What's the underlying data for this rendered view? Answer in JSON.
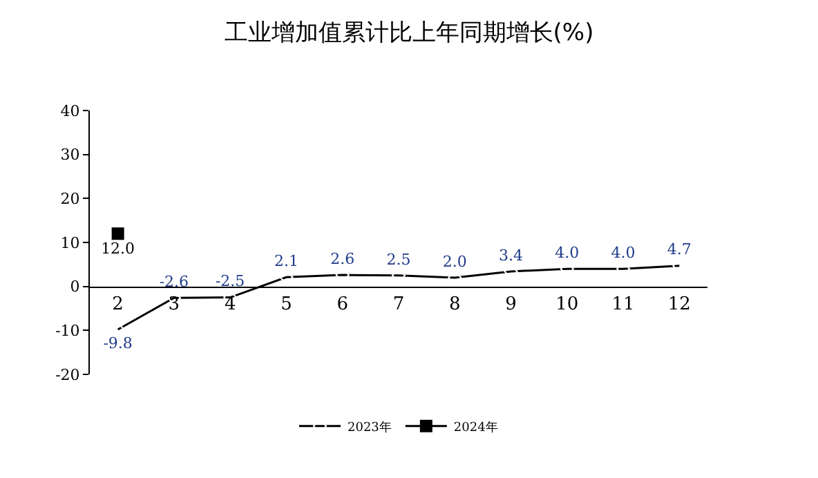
{
  "chart_data": {
    "type": "line",
    "title": "工业增加值累计比上年同期增长(%)",
    "categories": [
      "2",
      "3",
      "4",
      "5",
      "6",
      "7",
      "8",
      "9",
      "10",
      "11",
      "12"
    ],
    "series": [
      {
        "name": "2023年",
        "color": "#000000",
        "marker": "diamond",
        "values": [
          -9.8,
          -2.6,
          -2.5,
          2.1,
          2.6,
          2.5,
          2.0,
          3.4,
          4.0,
          4.0,
          4.7
        ],
        "value_labels": [
          "-9.8",
          "-2.6",
          "-2.5",
          "2.1",
          "2.6",
          "2.5",
          "2.0",
          "3.4",
          "4.0",
          "4.0",
          "4.7"
        ]
      },
      {
        "name": "2024年",
        "color": "#000000",
        "marker": "square",
        "values": [
          12.0,
          null,
          null,
          null,
          null,
          null,
          null,
          null,
          null,
          null,
          null
        ],
        "value_labels": [
          "12.0",
          null,
          null,
          null,
          null,
          null,
          null,
          null,
          null,
          null,
          null
        ]
      }
    ],
    "ylim": [
      -20,
      40
    ],
    "yticks": [
      -20,
      -10,
      0,
      10,
      20,
      30,
      40
    ],
    "grid": false,
    "legend": "bottom"
  }
}
